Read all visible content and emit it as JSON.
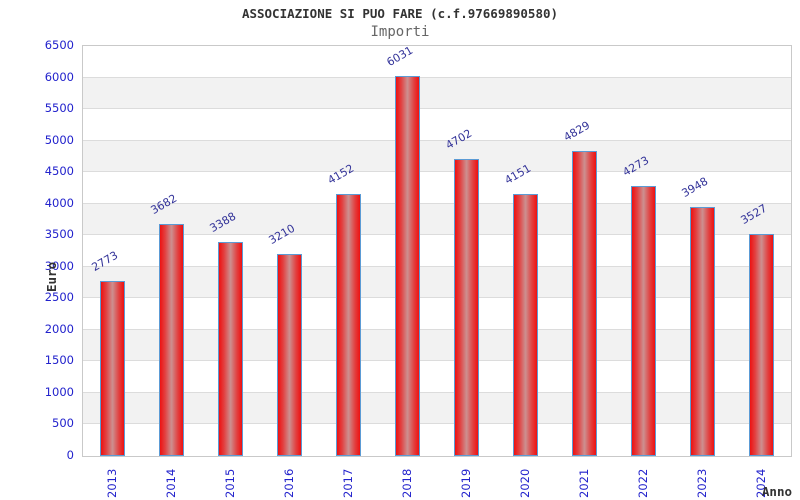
{
  "header": {
    "title": "ASSOCIAZIONE SI PUO FARE (c.f.97669890580)",
    "subtitle": "Importi"
  },
  "chart_data": {
    "type": "bar",
    "title": "ASSOCIAZIONE SI PUO FARE (c.f.97669890580)",
    "subtitle": "Importi",
    "xlabel": "Anno",
    "ylabel": "Euro",
    "categories": [
      "2013",
      "2014",
      "2015",
      "2016",
      "2017",
      "2018",
      "2019",
      "2020",
      "2021",
      "2022",
      "2023",
      "2024"
    ],
    "values": [
      2773,
      3682,
      3388,
      3210,
      4152,
      6031,
      4702,
      4151,
      4829,
      4273,
      3948,
      3527
    ],
    "ylim": [
      0,
      6500
    ],
    "ytick_step": 500,
    "ytick_labels": [
      "0",
      "500",
      "1000",
      "1500",
      "2000",
      "2500",
      "3000",
      "3500",
      "4000",
      "4500",
      "5000",
      "5500",
      "6000",
      "6500"
    ],
    "grid": true,
    "band_fill": "alternating",
    "legend": "none",
    "colors": {
      "bar_edge": "#5b9bd5",
      "bar_red": "#ee1111",
      "bar_center": "#cc9090",
      "tick_label": "#2222cc",
      "value_label": "#333399",
      "band_shade": "#f2f2f2",
      "gridline": "#dcdcdc",
      "axis_text": "#333333",
      "background": "#ffffff"
    }
  }
}
